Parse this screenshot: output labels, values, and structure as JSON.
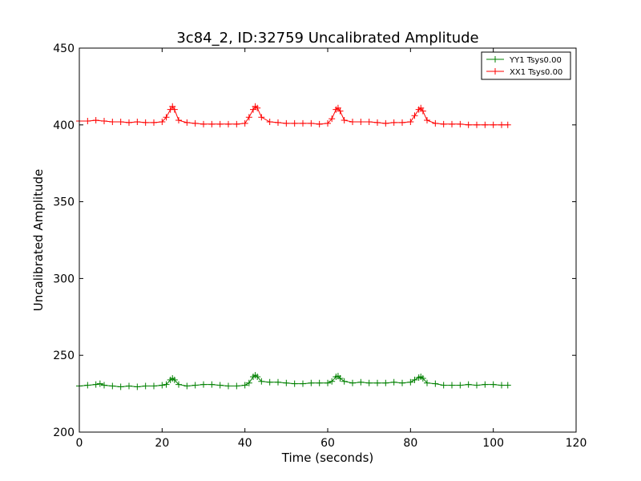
{
  "chart_data": {
    "type": "line",
    "title": "3c84_2, ID:32759 Uncalibrated Amplitude",
    "xlabel": "Time (seconds)",
    "ylabel": "Uncalibrated Amplitude",
    "xlim": [
      0,
      120
    ],
    "ylim": [
      200,
      450
    ],
    "x_ticks": [
      0,
      20,
      40,
      60,
      80,
      100,
      120
    ],
    "y_ticks": [
      200,
      250,
      300,
      350,
      400,
      450
    ],
    "grid": false,
    "legend_position": "top-right",
    "marker": "+",
    "series": [
      {
        "name": "YY1 Tsys0.00",
        "color": "#008000",
        "points": [
          [
            0,
            230
          ],
          [
            2,
            230.5
          ],
          [
            4,
            231
          ],
          [
            5,
            231.5
          ],
          [
            6,
            230.5
          ],
          [
            8,
            230
          ],
          [
            10,
            229.5
          ],
          [
            12,
            230
          ],
          [
            14,
            229.5
          ],
          [
            16,
            230
          ],
          [
            18,
            230
          ],
          [
            20,
            230.5
          ],
          [
            21,
            231
          ],
          [
            22,
            234
          ],
          [
            22.5,
            235
          ],
          [
            23,
            234
          ],
          [
            24,
            231
          ],
          [
            26,
            230
          ],
          [
            28,
            230.5
          ],
          [
            30,
            231
          ],
          [
            32,
            231
          ],
          [
            34,
            230.5
          ],
          [
            36,
            230
          ],
          [
            38,
            230
          ],
          [
            40,
            230.5
          ],
          [
            41,
            232
          ],
          [
            42,
            236
          ],
          [
            42.5,
            237
          ],
          [
            43,
            236
          ],
          [
            44,
            233
          ],
          [
            46,
            232.5
          ],
          [
            48,
            232.5
          ],
          [
            50,
            232
          ],
          [
            52,
            231.5
          ],
          [
            54,
            231.5
          ],
          [
            56,
            232
          ],
          [
            58,
            232
          ],
          [
            60,
            232
          ],
          [
            61,
            233
          ],
          [
            62,
            236
          ],
          [
            62.5,
            236.5
          ],
          [
            63,
            235
          ],
          [
            64,
            233
          ],
          [
            66,
            232
          ],
          [
            68,
            232.5
          ],
          [
            70,
            232
          ],
          [
            72,
            232
          ],
          [
            74,
            232
          ],
          [
            76,
            232.5
          ],
          [
            78,
            232
          ],
          [
            80,
            232.5
          ],
          [
            81,
            234
          ],
          [
            82,
            235.5
          ],
          [
            82.5,
            236
          ],
          [
            83,
            235
          ],
          [
            84,
            232
          ],
          [
            86,
            231.5
          ],
          [
            88,
            230.5
          ],
          [
            90,
            230.5
          ],
          [
            92,
            230.5
          ],
          [
            94,
            231
          ],
          [
            96,
            230.5
          ],
          [
            98,
            231
          ],
          [
            100,
            231
          ],
          [
            102,
            230.5
          ],
          [
            103.5,
            230.5
          ]
        ]
      },
      {
        "name": "XX1 Tsys0.00",
        "color": "#ff0000",
        "points": [
          [
            0,
            402.5
          ],
          [
            2,
            402.5
          ],
          [
            4,
            403
          ],
          [
            6,
            402.5
          ],
          [
            8,
            402
          ],
          [
            10,
            402
          ],
          [
            12,
            401.5
          ],
          [
            14,
            402
          ],
          [
            16,
            401.5
          ],
          [
            18,
            401.5
          ],
          [
            20,
            402
          ],
          [
            21,
            405
          ],
          [
            22,
            410
          ],
          [
            22.5,
            412
          ],
          [
            23,
            410
          ],
          [
            24,
            403
          ],
          [
            26,
            401.5
          ],
          [
            28,
            401
          ],
          [
            30,
            400.5
          ],
          [
            32,
            400.5
          ],
          [
            34,
            400.5
          ],
          [
            36,
            400.5
          ],
          [
            38,
            400.5
          ],
          [
            40,
            401
          ],
          [
            41,
            405
          ],
          [
            42,
            410
          ],
          [
            42.5,
            412
          ],
          [
            43,
            411
          ],
          [
            44,
            405
          ],
          [
            46,
            402
          ],
          [
            48,
            401.5
          ],
          [
            50,
            401
          ],
          [
            52,
            401
          ],
          [
            54,
            401
          ],
          [
            56,
            401
          ],
          [
            58,
            400.5
          ],
          [
            60,
            401
          ],
          [
            61,
            404
          ],
          [
            62,
            410
          ],
          [
            62.5,
            411
          ],
          [
            63,
            409
          ],
          [
            64,
            403
          ],
          [
            66,
            402
          ],
          [
            68,
            402
          ],
          [
            70,
            402
          ],
          [
            72,
            401.5
          ],
          [
            74,
            401
          ],
          [
            76,
            401.5
          ],
          [
            78,
            401.5
          ],
          [
            80,
            402
          ],
          [
            81,
            406
          ],
          [
            82,
            410
          ],
          [
            82.5,
            411
          ],
          [
            83,
            409
          ],
          [
            84,
            403
          ],
          [
            86,
            401
          ],
          [
            88,
            400.5
          ],
          [
            90,
            400.5
          ],
          [
            92,
            400.5
          ],
          [
            94,
            400
          ],
          [
            96,
            400
          ],
          [
            98,
            400
          ],
          [
            100,
            400
          ],
          [
            102,
            400
          ],
          [
            103.5,
            400
          ]
        ]
      }
    ]
  }
}
